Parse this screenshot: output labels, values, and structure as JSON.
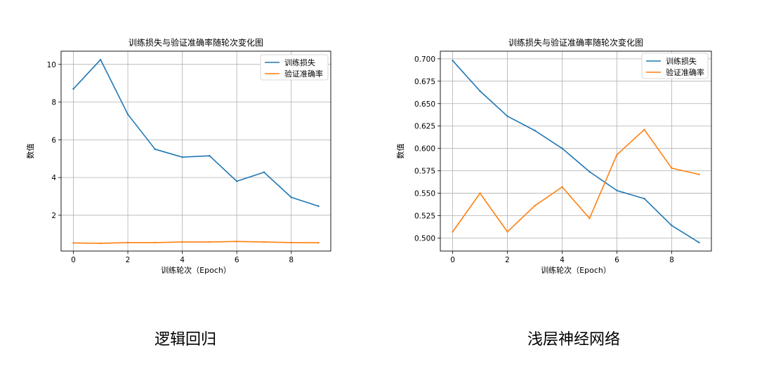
{
  "chart_data": [
    {
      "type": "line",
      "title": "训练损失与验证准确率随轮次变化图",
      "xlabel": "训练轮次（Epoch）",
      "ylabel": "数值",
      "xlim": [
        -0.45,
        9.45
      ],
      "ylim": [
        0.1,
        10.7
      ],
      "xticks": [
        0,
        2,
        4,
        6,
        8
      ],
      "yticks": [
        2,
        4,
        6,
        8,
        10
      ],
      "ytick_labels": [
        "2",
        "4",
        "6",
        "8",
        "10"
      ],
      "grid": true,
      "legend_position": "top-right",
      "x": [
        0,
        1,
        2,
        3,
        4,
        5,
        6,
        7,
        8,
        9
      ],
      "series": [
        {
          "name": "训练损失",
          "color": "#1f77b4",
          "values": [
            8.7,
            10.25,
            7.35,
            5.5,
            5.08,
            5.15,
            3.8,
            4.28,
            2.95,
            2.48
          ]
        },
        {
          "name": "验证准确率",
          "color": "#ff7f0e",
          "values": [
            0.53,
            0.51,
            0.55,
            0.55,
            0.58,
            0.58,
            0.61,
            0.58,
            0.55,
            0.54
          ]
        }
      ],
      "caption": "逻辑回归"
    },
    {
      "type": "line",
      "title": "训练损失与验证准确率随轮次变化图",
      "xlabel": "训练轮次（Epoch）",
      "ylabel": "数值",
      "xlim": [
        -0.45,
        9.45
      ],
      "ylim": [
        0.4855,
        0.7085
      ],
      "xticks": [
        0,
        2,
        4,
        6,
        8
      ],
      "yticks": [
        0.5,
        0.525,
        0.55,
        0.575,
        0.6,
        0.625,
        0.65,
        0.675,
        0.7
      ],
      "ytick_labels": [
        "0.500",
        "0.525",
        "0.550",
        "0.575",
        "0.600",
        "0.625",
        "0.650",
        "0.675",
        "0.700"
      ],
      "grid": true,
      "legend_position": "top-right",
      "x": [
        0,
        1,
        2,
        3,
        4,
        5,
        6,
        7,
        8,
        9
      ],
      "series": [
        {
          "name": "训练损失",
          "color": "#1f77b4",
          "values": [
            0.698,
            0.664,
            0.636,
            0.62,
            0.6,
            0.574,
            0.553,
            0.544,
            0.514,
            0.495
          ]
        },
        {
          "name": "验证准确率",
          "color": "#ff7f0e",
          "values": [
            0.507,
            0.55,
            0.507,
            0.536,
            0.557,
            0.522,
            0.593,
            0.621,
            0.578,
            0.571
          ]
        }
      ],
      "caption": "浅层神经网络"
    }
  ]
}
